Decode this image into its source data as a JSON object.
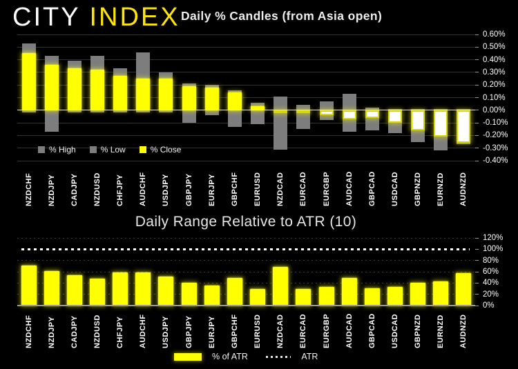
{
  "brand": {
    "city": "CITY",
    "index": "INDEX"
  },
  "chart_data": [
    {
      "type": "bar",
      "title": "Daily % Candles (from Asia open)",
      "categories": [
        "NZDCHF",
        "NZDJPY",
        "CADJPY",
        "NZDUSD",
        "CHFJPY",
        "AUDCHF",
        "USDJPY",
        "GBPJPY",
        "EURJPY",
        "GBPCHF",
        "EURUSD",
        "NZDCAD",
        "EURCAD",
        "EURGBP",
        "AUDCAD",
        "GBPCAD",
        "USDCAD",
        "GBPNZD",
        "EURNZD",
        "AUDNZD"
      ],
      "series": [
        {
          "name": "% High",
          "values": [
            0.53,
            0.43,
            0.39,
            0.43,
            0.33,
            0.46,
            0.3,
            0.21,
            0.2,
            0.16,
            0.06,
            0.11,
            0.04,
            0.07,
            0.13,
            0.02,
            0.01,
            0.01,
            0.01,
            0.01
          ]
        },
        {
          "name": "% Low",
          "values": [
            -0.02,
            -0.17,
            -0.02,
            -0.02,
            -0.02,
            -0.02,
            -0.02,
            -0.1,
            -0.04,
            -0.13,
            -0.11,
            -0.31,
            -0.15,
            -0.08,
            -0.17,
            -0.16,
            -0.18,
            -0.25,
            -0.32,
            -0.27
          ]
        },
        {
          "name": "% Close",
          "values": [
            0.45,
            0.36,
            0.33,
            0.32,
            0.27,
            0.25,
            0.25,
            0.19,
            0.18,
            0.14,
            0.03,
            -0.01,
            -0.02,
            -0.04,
            -0.07,
            -0.06,
            -0.1,
            -0.16,
            -0.21,
            -0.26
          ]
        }
      ],
      "ylim": [
        -0.4,
        0.6
      ],
      "yticks": [
        {
          "value": 0.6,
          "label": "0.60%"
        },
        {
          "value": 0.5,
          "label": "0.50%"
        },
        {
          "value": 0.4,
          "label": "0.40%"
        },
        {
          "value": 0.3,
          "label": "0.30%"
        },
        {
          "value": 0.2,
          "label": "0.20%"
        },
        {
          "value": 0.1,
          "label": "0.10%"
        },
        {
          "value": 0.0,
          "label": "0.00%"
        },
        {
          "value": -0.1,
          "label": "-0.10%"
        },
        {
          "value": -0.2,
          "label": "-0.20%"
        },
        {
          "value": -0.3,
          "label": "-0.30%"
        },
        {
          "value": -0.4,
          "label": "-0.40%"
        }
      ],
      "legend_position": "bottom-left",
      "grid": true,
      "colors": {
        "high": "#7d7d7d",
        "low": "#7d7d7d",
        "close_up": "#ffff00",
        "close_down_fill": "#ffffff",
        "close_down_border": "#d9d900"
      }
    },
    {
      "type": "bar",
      "title": "Daily Range Relative to ATR (10)",
      "categories": [
        "NZDCHF",
        "NZDJPY",
        "CADJPY",
        "NZDUSD",
        "CHFJPY",
        "AUDCHF",
        "USDJPY",
        "GBPJPY",
        "EURJPY",
        "GBPCHF",
        "EURUSD",
        "NZDCAD",
        "EURCAD",
        "EURGBP",
        "AUDCAD",
        "GBPCAD",
        "USDCAD",
        "GBPNZD",
        "EURNZD",
        "AUDNZD"
      ],
      "series": [
        {
          "name": "% of ATR",
          "values": [
            71,
            61,
            54,
            48,
            59,
            59,
            52,
            40,
            35,
            49,
            30,
            68,
            29,
            33,
            49,
            31,
            33,
            40,
            43,
            57
          ]
        }
      ],
      "reference_line": {
        "name": "ATR",
        "value": 100
      },
      "ylim": [
        0,
        120
      ],
      "yticks": [
        {
          "value": 120,
          "label": "120%"
        },
        {
          "value": 100,
          "label": "100%"
        },
        {
          "value": 80,
          "label": "80%"
        },
        {
          "value": 60,
          "label": "60%"
        },
        {
          "value": 40,
          "label": "40%"
        },
        {
          "value": 20,
          "label": "20%"
        },
        {
          "value": 0,
          "label": "0%"
        }
      ],
      "legend_position": "bottom-center",
      "grid": true,
      "colors": {
        "bar": "#ffff00",
        "atr_line": "#ffffff"
      }
    }
  ]
}
